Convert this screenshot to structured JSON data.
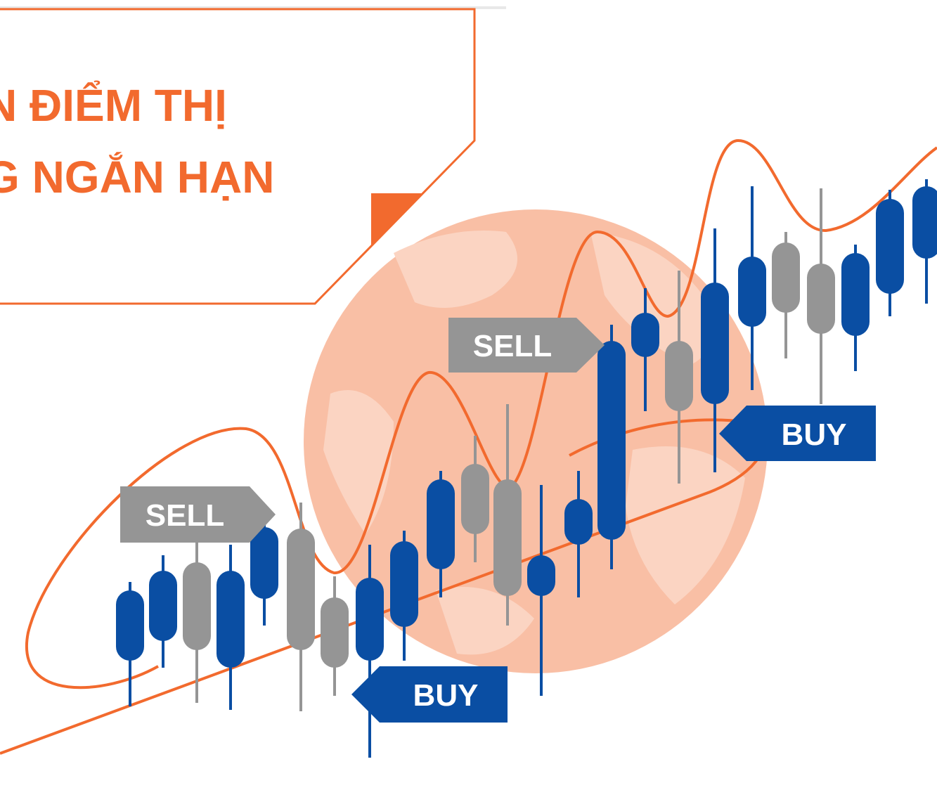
{
  "header": {
    "title_lines": [
      "N ĐIỂM THỊ",
      "G NGẮN HẠN"
    ]
  },
  "tags": [
    {
      "label": "SELL"
    },
    {
      "label": "SELL"
    },
    {
      "label": "BUY"
    },
    {
      "label": "BUY"
    }
  ]
}
